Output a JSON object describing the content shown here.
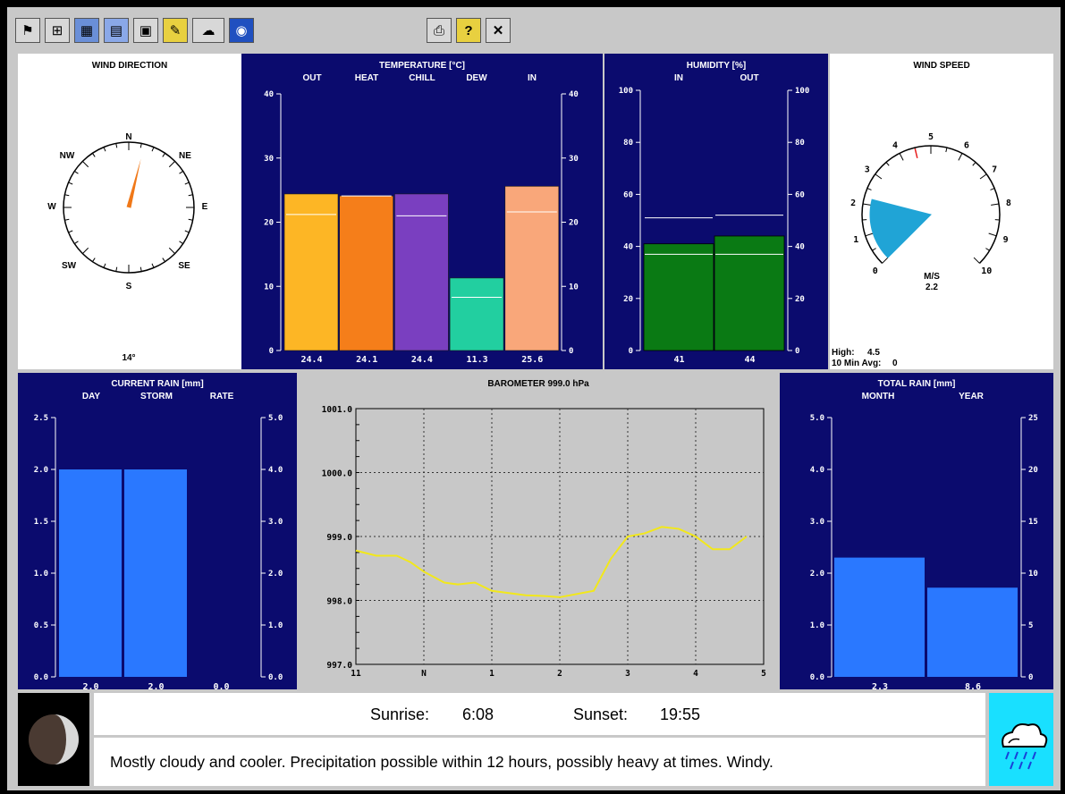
{
  "toolbar": {
    "buttons": [
      {
        "name": "wind-tool-icon",
        "glyph": "⚑"
      },
      {
        "name": "network-tool-icon",
        "glyph": "⊞"
      },
      {
        "name": "map-tool-icon",
        "glyph": "▦"
      },
      {
        "name": "graph-tool-icon",
        "glyph": "▤"
      },
      {
        "name": "display-tool-icon",
        "glyph": "▣"
      },
      {
        "name": "notes-tool-icon",
        "glyph": "✎"
      },
      {
        "name": "cloud-tool-icon",
        "glyph": "☁"
      },
      {
        "name": "noaa-logo-icon",
        "glyph": "◉"
      },
      {
        "name": "print-icon",
        "glyph": "⎙"
      },
      {
        "name": "help-icon",
        "glyph": "?"
      },
      {
        "name": "close-icon",
        "glyph": "✕"
      }
    ]
  },
  "wind_direction": {
    "title": "WIND DIRECTION",
    "labels": [
      "N",
      "NE",
      "E",
      "SE",
      "S",
      "SW",
      "W",
      "NW"
    ],
    "value_deg": 14,
    "value_text": "14°",
    "needle_color": "#f07818"
  },
  "temperature": {
    "title": "TEMPERATURE  [°C]",
    "chart_data": {
      "type": "bar",
      "categories": [
        "OUT",
        "HEAT",
        "CHILL",
        "DEW",
        "IN"
      ],
      "values": [
        24.4,
        24.1,
        24.4,
        11.3,
        25.6
      ],
      "value_labels": [
        "24.4",
        "24.1",
        "24.4",
        "11.3",
        "25.6"
      ],
      "markers": [
        21.2,
        24.1,
        21.0,
        8.3,
        21.6
      ],
      "colors": [
        "#fdb625",
        "#f57e1a",
        "#7a3fc0",
        "#22cfa0",
        "#f9a77a"
      ],
      "ylim": [
        0,
        40
      ],
      "ticks": [
        "0",
        "10",
        "20",
        "30",
        "40"
      ]
    }
  },
  "humidity": {
    "title": "HUMIDITY  [%]",
    "chart_data": {
      "type": "bar",
      "categories": [
        "IN",
        "OUT"
      ],
      "values": [
        41,
        44
      ],
      "value_labels": [
        "41",
        "44"
      ],
      "markers_high": [
        51,
        52
      ],
      "markers_low": [
        37,
        37
      ],
      "colors": [
        "#0a7a14",
        "#0a7a14"
      ],
      "ylim": [
        0,
        100
      ],
      "ticks": [
        "0",
        "20",
        "40",
        "60",
        "80",
        "100"
      ]
    }
  },
  "wind_speed": {
    "title": "WIND SPEED",
    "scale_labels": [
      "0",
      "1",
      "2",
      "3",
      "4",
      "5",
      "6",
      "7",
      "8",
      "9",
      "10"
    ],
    "unit": "M/S",
    "value": 2.2,
    "value_text": "2.2",
    "high_marker": 4.5,
    "high_label": "High:",
    "high_value": "4.5",
    "avg_label": "10 Min Avg:",
    "avg_value": "0",
    "fill_color": "#20a4d6"
  },
  "current_rain": {
    "title": "CURRENT RAIN  [mm]",
    "chart_data": {
      "type": "bar",
      "categories": [
        "DAY",
        "STORM",
        "RATE"
      ],
      "values": [
        2.0,
        2.0,
        0.0
      ],
      "value_labels": [
        "2.0",
        "2.0",
        "0.0"
      ],
      "color": "#2a78ff",
      "ylim_left": [
        0,
        2.5
      ],
      "ticks_left": [
        "0.0",
        "0.5",
        "1.0",
        "1.5",
        "2.0",
        "2.5"
      ],
      "ylim_right": [
        0,
        5.0
      ],
      "ticks_right": [
        "0.0",
        "1.0",
        "2.0",
        "3.0",
        "4.0",
        "5.0"
      ]
    }
  },
  "barometer": {
    "title": "BAROMETER  999.0 hPa",
    "chart_data": {
      "type": "line",
      "x": [
        11.0,
        11.3,
        11.6,
        11.8,
        12.0,
        12.3,
        12.5,
        12.75,
        13.0,
        13.5,
        13.75,
        14.0,
        14.5,
        14.75,
        15.0,
        15.25,
        15.5,
        15.75,
        16.0,
        16.25,
        16.5,
        16.75
      ],
      "x_axis_hours": "11 .. 17 (1-5 pm)",
      "y": [
        998.78,
        998.7,
        998.7,
        998.6,
        998.45,
        998.28,
        998.25,
        998.28,
        998.15,
        998.08,
        998.07,
        998.05,
        998.15,
        998.65,
        999.0,
        999.05,
        999.15,
        999.12,
        999.0,
        998.8,
        998.8,
        999.0
      ],
      "xlim": [
        11,
        17
      ],
      "ylim": [
        997.0,
        1001.0
      ],
      "x_ticks": [
        "11",
        "N",
        "1",
        "2",
        "3",
        "4",
        "5"
      ],
      "y_ticks": [
        "997.0",
        "998.0",
        "999.0",
        "1000.0",
        "1001.0"
      ],
      "line_color": "#f2e81a",
      "grid": true
    }
  },
  "total_rain": {
    "title": "TOTAL RAIN  [mm]",
    "chart_data": {
      "type": "bar",
      "categories": [
        "MONTH",
        "YEAR"
      ],
      "values": [
        2.3,
        8.6
      ],
      "value_labels": [
        "2.3",
        "8.6"
      ],
      "color": "#2a78ff",
      "left_axis_max": 5.0,
      "ticks_left": [
        "0.0",
        "1.0",
        "2.0",
        "3.0",
        "4.0",
        "5.0"
      ],
      "right_axis_max": 25,
      "ticks_right": [
        "0",
        "5",
        "10",
        "15",
        "20",
        "25"
      ]
    }
  },
  "sun": {
    "sunrise_label": "Sunrise:",
    "sunrise_time": "6:08",
    "sunset_label": "Sunset:",
    "sunset_time": "19:55"
  },
  "forecast": {
    "text": "Mostly cloudy and cooler.  Precipitation possible within 12 hours, possibly heavy at times.  Windy.",
    "icon": "rain-cloud-icon",
    "icon_bg": "#19e0ff"
  },
  "moon": {
    "icon": "moon-phase-icon"
  }
}
